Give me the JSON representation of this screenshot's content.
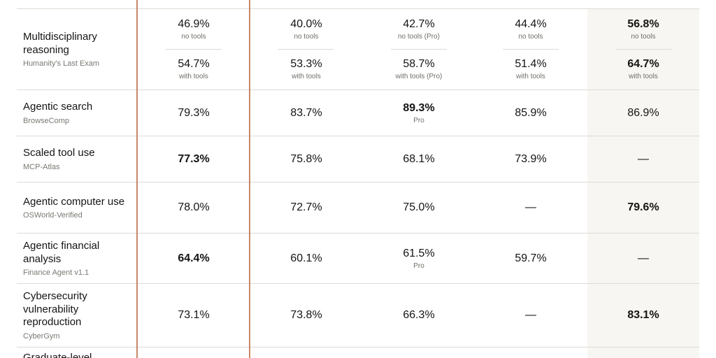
{
  "rows": [
    {
      "name": "Multidisciplinary reasoning",
      "sub": "Humanity's Last Exam",
      "cells": [
        {
          "top": {
            "v": "46.9%",
            "n": "no tools"
          },
          "bot": {
            "v": "54.7%",
            "n": "with tools"
          }
        },
        {
          "top": {
            "v": "40.0%",
            "n": "no tools"
          },
          "bot": {
            "v": "53.3%",
            "n": "with tools"
          }
        },
        {
          "top": {
            "v": "42.7%",
            "n": "no tools (Pro)"
          },
          "bot": {
            "v": "58.7%",
            "n": "with tools (Pro)"
          }
        },
        {
          "top": {
            "v": "44.4%",
            "n": "no tools"
          },
          "bot": {
            "v": "51.4%",
            "n": "with tools"
          }
        },
        {
          "top": {
            "v": "56.8%",
            "n": "no tools"
          },
          "bot": {
            "v": "64.7%",
            "n": "with tools"
          }
        }
      ]
    },
    {
      "name": "Agentic search",
      "sub": "BrowseComp",
      "cells": [
        {
          "v": "79.3%"
        },
        {
          "v": "83.7%"
        },
        {
          "v": "89.3%",
          "n": "Pro"
        },
        {
          "v": "85.9%"
        },
        {
          "v": "86.9%"
        }
      ]
    },
    {
      "name": "Scaled tool use",
      "sub": "MCP-Atlas",
      "cells": [
        {
          "v": "77.3%"
        },
        {
          "v": "75.8%"
        },
        {
          "v": "68.1%"
        },
        {
          "v": "73.9%"
        },
        {
          "v": "—"
        }
      ]
    },
    {
      "name": "Agentic computer use",
      "sub": "OSWorld-Verified",
      "cells": [
        {
          "v": "78.0%"
        },
        {
          "v": "72.7%"
        },
        {
          "v": "75.0%"
        },
        {
          "v": "—"
        },
        {
          "v": "79.6%"
        }
      ]
    },
    {
      "name": "Agentic financial analysis",
      "sub": "Finance Agent v1.1",
      "cells": [
        {
          "v": "64.4%"
        },
        {
          "v": "60.1%"
        },
        {
          "v": "61.5%",
          "n": "Pro"
        },
        {
          "v": "59.7%"
        },
        {
          "v": "—"
        }
      ]
    },
    {
      "name": "Cybersecurity vulnerability reproduction",
      "sub": "CyberGym",
      "cells": [
        {
          "v": "73.1%"
        },
        {
          "v": "73.8%"
        },
        {
          "v": "66.3%"
        },
        {
          "v": "—"
        },
        {
          "v": "83.1%"
        }
      ]
    }
  ],
  "next_row_partial": "Graduate-level",
  "colors": {
    "accent_divider": "#c9876a",
    "highlight_column": "#f7f6f2",
    "rule": "#dcdbd6"
  }
}
